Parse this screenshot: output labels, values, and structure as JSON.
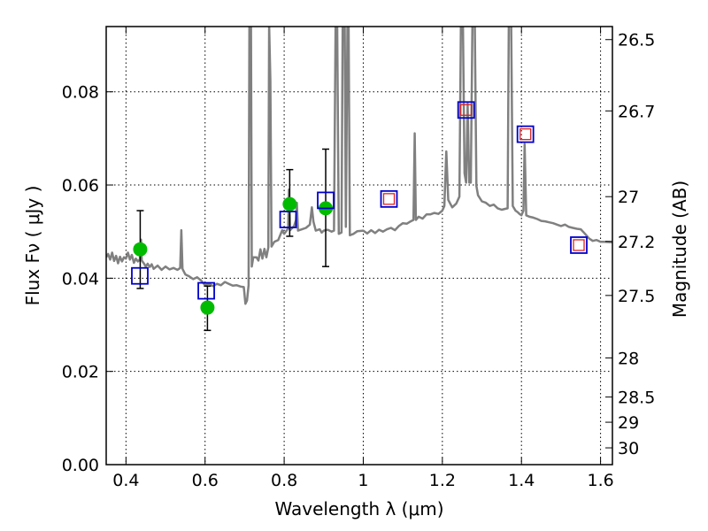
{
  "chart_data": {
    "type": "scatter",
    "xlabel": "Wavelength  λ (μm)",
    "ylabel": "Flux  Fν  ( μJy )",
    "y2label": "Magnitude (AB)",
    "xlim": [
      0.35,
      1.63
    ],
    "ylim": [
      0.0,
      0.094
    ],
    "grid": true,
    "x_ticks": [
      0.4,
      0.6,
      0.8,
      1.0,
      1.2,
      1.4,
      1.6
    ],
    "x_tick_labels": [
      "0.4",
      "0.6",
      "0.8",
      "1",
      "1.2",
      "1.4",
      "1.6"
    ],
    "y_ticks": [
      0.0,
      0.02,
      0.04,
      0.06,
      0.08
    ],
    "y_tick_labels": [
      "0.00",
      "0.02",
      "0.04",
      "0.06",
      "0.08"
    ],
    "mag_ticks": [
      {
        "label": "26.5",
        "flux": 0.0912
      },
      {
        "label": "26.7",
        "flux": 0.0759
      },
      {
        "label": "27",
        "flux": 0.0575
      },
      {
        "label": "27.2",
        "flux": 0.0479
      },
      {
        "label": "27.5",
        "flux": 0.0363
      },
      {
        "label": "28",
        "flux": 0.0229
      },
      {
        "label": "28.5",
        "flux": 0.0145
      },
      {
        "label": "29",
        "flux": 0.0091
      },
      {
        "label": "30",
        "flux": 0.0036
      }
    ],
    "colors": {
      "model": "#808080",
      "observed": "#00bb00",
      "model_band": "#0000cc",
      "model_band_inner": "#dd2222",
      "errorbar": "#000000"
    },
    "series": [
      {
        "kind": "model-spectrum",
        "points": [
          [
            0.35,
            0.0445
          ],
          [
            0.355,
            0.0452
          ],
          [
            0.36,
            0.044
          ],
          [
            0.365,
            0.0455
          ],
          [
            0.37,
            0.0437
          ],
          [
            0.375,
            0.0448
          ],
          [
            0.38,
            0.0432
          ],
          [
            0.385,
            0.0446
          ],
          [
            0.39,
            0.0436
          ],
          [
            0.395,
            0.0445
          ],
          [
            0.4,
            0.0442
          ],
          [
            0.405,
            0.0455
          ],
          [
            0.41,
            0.044
          ],
          [
            0.415,
            0.045
          ],
          [
            0.42,
            0.0433
          ],
          [
            0.425,
            0.0442
          ],
          [
            0.43,
            0.0436
          ],
          [
            0.435,
            0.044
          ],
          [
            0.438,
            0.0483
          ],
          [
            0.44,
            0.0438
          ],
          [
            0.445,
            0.0432
          ],
          [
            0.45,
            0.0425
          ],
          [
            0.455,
            0.0431
          ],
          [
            0.46,
            0.0424
          ],
          [
            0.465,
            0.043
          ],
          [
            0.47,
            0.042
          ],
          [
            0.48,
            0.0427
          ],
          [
            0.49,
            0.0418
          ],
          [
            0.5,
            0.0425
          ],
          [
            0.51,
            0.0419
          ],
          [
            0.52,
            0.0422
          ],
          [
            0.53,
            0.0418
          ],
          [
            0.537,
            0.0422
          ],
          [
            0.54,
            0.0503
          ],
          [
            0.543,
            0.042
          ],
          [
            0.55,
            0.0408
          ],
          [
            0.56,
            0.0404
          ],
          [
            0.57,
            0.0398
          ],
          [
            0.58,
            0.0402
          ],
          [
            0.59,
            0.0395
          ],
          [
            0.6,
            0.0385
          ],
          [
            0.61,
            0.0388
          ],
          [
            0.62,
            0.0383
          ],
          [
            0.63,
            0.0388
          ],
          [
            0.64,
            0.0385
          ],
          [
            0.65,
            0.0392
          ],
          [
            0.66,
            0.0388
          ],
          [
            0.67,
            0.0384
          ],
          [
            0.68,
            0.0385
          ],
          [
            0.69,
            0.0382
          ],
          [
            0.698,
            0.0381
          ],
          [
            0.702,
            0.0345
          ],
          [
            0.706,
            0.0352
          ],
          [
            0.71,
            0.0385
          ],
          [
            0.712,
            0.0945
          ],
          [
            0.716,
            0.0945
          ],
          [
            0.718,
            0.0425
          ],
          [
            0.722,
            0.0445
          ],
          [
            0.73,
            0.0445
          ],
          [
            0.735,
            0.0438
          ],
          [
            0.74,
            0.0462
          ],
          [
            0.745,
            0.0442
          ],
          [
            0.75,
            0.0463
          ],
          [
            0.755,
            0.0445
          ],
          [
            0.76,
            0.0466
          ],
          [
            0.762,
            0.0945
          ],
          [
            0.765,
            0.0825
          ],
          [
            0.768,
            0.0468
          ],
          [
            0.775,
            0.0478
          ],
          [
            0.785,
            0.0482
          ],
          [
            0.795,
            0.0503
          ],
          [
            0.8,
            0.0495
          ],
          [
            0.81,
            0.0507
          ],
          [
            0.812,
            0.059
          ],
          [
            0.815,
            0.0503
          ],
          [
            0.825,
            0.0512
          ],
          [
            0.83,
            0.0525
          ],
          [
            0.832,
            0.0562
          ],
          [
            0.835,
            0.0502
          ],
          [
            0.845,
            0.0505
          ],
          [
            0.855,
            0.0508
          ],
          [
            0.865,
            0.0515
          ],
          [
            0.87,
            0.0552
          ],
          [
            0.874,
            0.0521
          ],
          [
            0.88,
            0.0502
          ],
          [
            0.89,
            0.0505
          ],
          [
            0.895,
            0.0498
          ],
          [
            0.9,
            0.0502
          ],
          [
            0.91,
            0.0504
          ],
          [
            0.92,
            0.05
          ],
          [
            0.926,
            0.0502
          ],
          [
            0.93,
            0.0945
          ],
          [
            0.934,
            0.0945
          ],
          [
            0.938,
            0.0495
          ],
          [
            0.945,
            0.0498
          ],
          [
            0.948,
            0.0945
          ],
          [
            0.953,
            0.0945
          ],
          [
            0.956,
            0.051
          ],
          [
            0.96,
            0.0945
          ],
          [
            0.963,
            0.0945
          ],
          [
            0.966,
            0.0492
          ],
          [
            0.975,
            0.0495
          ],
          [
            0.985,
            0.0501
          ],
          [
            1.0,
            0.0502
          ],
          [
            1.01,
            0.0496
          ],
          [
            1.02,
            0.0503
          ],
          [
            1.03,
            0.0497
          ],
          [
            1.04,
            0.0504
          ],
          [
            1.05,
            0.05
          ],
          [
            1.06,
            0.0505
          ],
          [
            1.07,
            0.0508
          ],
          [
            1.08,
            0.0503
          ],
          [
            1.09,
            0.0512
          ],
          [
            1.1,
            0.0518
          ],
          [
            1.11,
            0.0517
          ],
          [
            1.12,
            0.0522
          ],
          [
            1.127,
            0.0525
          ],
          [
            1.13,
            0.0711
          ],
          [
            1.133,
            0.0525
          ],
          [
            1.14,
            0.0532
          ],
          [
            1.15,
            0.0528
          ],
          [
            1.16,
            0.0537
          ],
          [
            1.17,
            0.0537
          ],
          [
            1.18,
            0.054
          ],
          [
            1.19,
            0.0538
          ],
          [
            1.2,
            0.0545
          ],
          [
            1.205,
            0.0555
          ],
          [
            1.21,
            0.0672
          ],
          [
            1.215,
            0.0568
          ],
          [
            1.225,
            0.0552
          ],
          [
            1.235,
            0.056
          ],
          [
            1.243,
            0.0575
          ],
          [
            1.247,
            0.0945
          ],
          [
            1.252,
            0.0945
          ],
          [
            1.256,
            0.0625
          ],
          [
            1.26,
            0.0605
          ],
          [
            1.264,
            0.0775
          ],
          [
            1.268,
            0.0605
          ],
          [
            1.272,
            0.0605
          ],
          [
            1.276,
            0.0945
          ],
          [
            1.282,
            0.0945
          ],
          [
            1.286,
            0.0598
          ],
          [
            1.29,
            0.0578
          ],
          [
            1.3,
            0.0565
          ],
          [
            1.31,
            0.0562
          ],
          [
            1.32,
            0.0555
          ],
          [
            1.33,
            0.0558
          ],
          [
            1.34,
            0.055
          ],
          [
            1.35,
            0.0547
          ],
          [
            1.36,
            0.0549
          ],
          [
            1.365,
            0.055
          ],
          [
            1.368,
            0.0945
          ],
          [
            1.374,
            0.0945
          ],
          [
            1.378,
            0.0555
          ],
          [
            1.385,
            0.0545
          ],
          [
            1.39,
            0.0542
          ],
          [
            1.395,
            0.0538
          ],
          [
            1.4,
            0.0535
          ],
          [
            1.405,
            0.0545
          ],
          [
            1.408,
            0.0688
          ],
          [
            1.412,
            0.0535
          ],
          [
            1.42,
            0.0532
          ],
          [
            1.43,
            0.053
          ],
          [
            1.44,
            0.0527
          ],
          [
            1.45,
            0.0523
          ],
          [
            1.46,
            0.0522
          ],
          [
            1.47,
            0.052
          ],
          [
            1.48,
            0.0518
          ],
          [
            1.49,
            0.0515
          ],
          [
            1.5,
            0.0512
          ],
          [
            1.51,
            0.0515
          ],
          [
            1.52,
            0.051
          ],
          [
            1.53,
            0.0508
          ],
          [
            1.54,
            0.0506
          ],
          [
            1.55,
            0.0505
          ],
          [
            1.56,
            0.0496
          ],
          [
            1.57,
            0.0486
          ],
          [
            1.58,
            0.048
          ],
          [
            1.59,
            0.0482
          ],
          [
            1.6,
            0.0478
          ],
          [
            1.61,
            0.0478
          ],
          [
            1.63,
            0.0477
          ]
        ]
      },
      {
        "kind": "observed",
        "points": [
          {
            "x": 0.436,
            "y": 0.0462,
            "err_lo": 0.0378,
            "err_hi": 0.0545
          },
          {
            "x": 0.606,
            "y": 0.0337,
            "err_lo": 0.0288,
            "err_hi": 0.0383
          },
          {
            "x": 0.814,
            "y": 0.0559,
            "err_lo": 0.049,
            "err_hi": 0.0633
          },
          {
            "x": 0.905,
            "y": 0.055,
            "err_lo": 0.0425,
            "err_hi": 0.0677
          }
        ]
      },
      {
        "kind": "model-band",
        "points": [
          {
            "x": 0.435,
            "y": 0.0405,
            "inner": false
          },
          {
            "x": 0.603,
            "y": 0.0373,
            "inner": false
          },
          {
            "x": 0.81,
            "y": 0.0526,
            "inner": false
          },
          {
            "x": 0.905,
            "y": 0.0567,
            "inner": false
          },
          {
            "x": 1.065,
            "y": 0.057,
            "inner": true
          },
          {
            "x": 1.26,
            "y": 0.0761,
            "inner": true
          },
          {
            "x": 1.41,
            "y": 0.0709,
            "inner": true
          },
          {
            "x": 1.545,
            "y": 0.0471,
            "inner": true
          }
        ]
      }
    ]
  }
}
